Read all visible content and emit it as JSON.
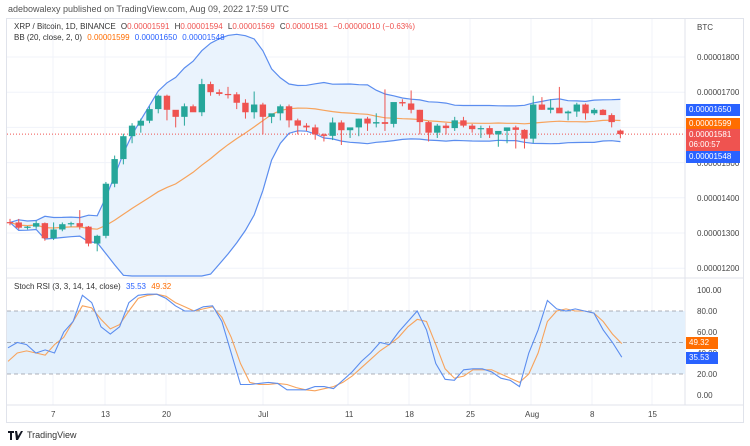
{
  "header": {
    "publisher_line": "adebowalexy published on TradingView.com, Aug 09, 2022 17:59 UTC"
  },
  "legend": {
    "symbol": "XRP / Bitcoin, 1D, BINANCE",
    "open_label": "O",
    "open": "0.00001591",
    "high_label": "H",
    "high": "0.00001594",
    "low_label": "L",
    "low": "0.00001569",
    "close_label": "C",
    "close": "0.00001581",
    "change": "−0.00000010 (−0.63%)",
    "bb_label": "BB (20, close, 2, 0)",
    "bb_basis": "0.00001599",
    "bb_upper": "0.00001650",
    "bb_lower": "0.00001548"
  },
  "rsi_legend": {
    "label": "Stoch RSI (3, 3, 14, 14, close)",
    "k": "35.53",
    "d": "49.32"
  },
  "price_axis": {
    "currency": "BTC",
    "ticks": [
      "0.00001800",
      "0.00001700",
      "0.00001500",
      "0.00001400",
      "0.00001300",
      "0.00001200"
    ]
  },
  "price_tags": {
    "bb_upper": "0.00001650",
    "bb_basis": "0.00001599",
    "last_price": "0.00001581",
    "countdown": "06:00:57",
    "bb_lower": "0.00001548"
  },
  "rsi_axis": {
    "ticks": [
      "100.00",
      "80.00",
      "60.00",
      "40.00",
      "20.00",
      "0.00"
    ],
    "tag_d": "49.32",
    "tag_k": "35.53"
  },
  "time_axis": {
    "ticks": [
      "7",
      "13",
      "20",
      "Jul",
      "11",
      "18",
      "25",
      "Aug",
      "8",
      "15"
    ]
  },
  "footer": {
    "brand": "TradingView"
  },
  "colors": {
    "up": "#26a69a",
    "down": "#ef5350",
    "bb_band": "#5b8def",
    "bb_basis": "#f7a35c",
    "bb_fill": "#eaf3fd",
    "rsi_k": "#5b8def",
    "rsi_d": "#f7a35c",
    "rsi_fill": "#e3f0fc",
    "tag_blue": "#2962ff",
    "tag_orange": "#ff6d00",
    "tag_red": "#ef5350"
  },
  "chart_data": [
    {
      "type": "candlestick",
      "title": "XRP / Bitcoin, 1D, BINANCE",
      "ylabel": "BTC",
      "ylim": [
        1.17e-05,
        1.86e-05
      ],
      "x_tick_labels": [
        "7",
        "13",
        "20",
        "Jul",
        "11",
        "18",
        "25",
        "Aug",
        "8",
        "15"
      ],
      "ohlc_approx": [
        [
          1331,
          1340,
          1322,
          1330
        ],
        [
          1330,
          1340,
          1310,
          1315
        ],
        [
          1315,
          1320,
          1310,
          1318
        ],
        [
          1318,
          1335,
          1312,
          1328
        ],
        [
          1328,
          1330,
          1278,
          1285
        ],
        [
          1285,
          1330,
          1280,
          1310
        ],
        [
          1310,
          1330,
          1305,
          1325
        ],
        [
          1325,
          1332,
          1318,
          1328
        ],
        [
          1328,
          1365,
          1310,
          1318
        ],
        [
          1318,
          1320,
          1262,
          1270
        ],
        [
          1270,
          1295,
          1248,
          1292
        ],
        [
          1292,
          1445,
          1285,
          1440
        ],
        [
          1440,
          1520,
          1430,
          1510
        ],
        [
          1510,
          1582,
          1495,
          1575
        ],
        [
          1575,
          1612,
          1555,
          1605
        ],
        [
          1605,
          1625,
          1585,
          1619
        ],
        [
          1619,
          1660,
          1612,
          1652
        ],
        [
          1652,
          1693,
          1640,
          1690
        ],
        [
          1690,
          1693,
          1620,
          1650
        ],
        [
          1650,
          1645,
          1600,
          1630
        ],
        [
          1630,
          1668,
          1605,
          1660
        ],
        [
          1660,
          1665,
          1645,
          1643
        ],
        [
          1643,
          1738,
          1632,
          1723
        ],
        [
          1723,
          1730,
          1690,
          1700
        ],
        [
          1700,
          1708,
          1690,
          1695
        ],
        [
          1695,
          1715,
          1682,
          1694
        ],
        [
          1694,
          1700,
          1652,
          1670
        ],
        [
          1670,
          1680,
          1625,
          1643
        ],
        [
          1643,
          1702,
          1625,
          1665
        ],
        [
          1665,
          1670,
          1580,
          1630
        ],
        [
          1630,
          1638,
          1612,
          1640
        ],
        [
          1640,
          1665,
          1620,
          1660
        ],
        [
          1660,
          1665,
          1600,
          1620
        ],
        [
          1620,
          1625,
          1580,
          1605
        ],
        [
          1605,
          1612,
          1590,
          1600
        ],
        [
          1600,
          1608,
          1565,
          1580
        ],
        [
          1580,
          1583,
          1560,
          1576
        ],
        [
          1576,
          1628,
          1564,
          1614
        ],
        [
          1614,
          1620,
          1550,
          1592
        ],
        [
          1592,
          1598,
          1570,
          1600
        ],
        [
          1600,
          1625,
          1575,
          1625
        ],
        [
          1625,
          1630,
          1590,
          1611
        ],
        [
          1611,
          1640,
          1600,
          1615
        ],
        [
          1615,
          1708,
          1590,
          1610
        ],
        [
          1610,
          1670,
          1600,
          1672
        ],
        [
          1672,
          1680,
          1660,
          1668
        ],
        [
          1668,
          1705,
          1640,
          1650
        ],
        [
          1650,
          1650,
          1580,
          1615
        ],
        [
          1615,
          1618,
          1560,
          1585
        ],
        [
          1585,
          1610,
          1570,
          1605
        ],
        [
          1605,
          1612,
          1580,
          1598
        ],
        [
          1598,
          1630,
          1590,
          1620
        ],
        [
          1620,
          1630,
          1600,
          1605
        ],
        [
          1605,
          1610,
          1585,
          1595
        ],
        [
          1595,
          1605,
          1570,
          1598
        ],
        [
          1598,
          1605,
          1570,
          1580
        ],
        [
          1580,
          1586,
          1545,
          1590
        ],
        [
          1590,
          1592,
          1555,
          1600
        ],
        [
          1600,
          1605,
          1540,
          1593
        ],
        [
          1593,
          1595,
          1540,
          1568
        ],
        [
          1568,
          1690,
          1556,
          1665
        ],
        [
          1665,
          1686,
          1650,
          1650
        ],
        [
          1650,
          1680,
          1640,
          1656
        ],
        [
          1656,
          1715,
          1645,
          1640
        ],
        [
          1640,
          1648,
          1620,
          1645
        ],
        [
          1645,
          1670,
          1630,
          1665
        ],
        [
          1665,
          1668,
          1622,
          1640
        ],
        [
          1640,
          1655,
          1635,
          1650
        ],
        [
          1650,
          1652,
          1635,
          1635
        ],
        [
          1635,
          1640,
          1600,
          1615
        ],
        [
          1591,
          1594,
          1569,
          1581
        ]
      ],
      "series": [
        {
          "name": "BB upper",
          "last": 1.65e-05
        },
        {
          "name": "BB basis",
          "last": 1.599e-05
        },
        {
          "name": "BB lower",
          "last": 1.548e-05
        }
      ]
    },
    {
      "type": "line",
      "title": "Stoch RSI (3, 3, 14, 14, close)",
      "ylim": [
        0,
        100
      ],
      "y_ticks": [
        0,
        20,
        40,
        60,
        80,
        100
      ],
      "bands": {
        "upper": 80,
        "middle": 50,
        "lower": 20
      },
      "series": [
        {
          "name": "K",
          "last": 35.53
        },
        {
          "name": "D",
          "last": 49.32
        }
      ]
    }
  ]
}
